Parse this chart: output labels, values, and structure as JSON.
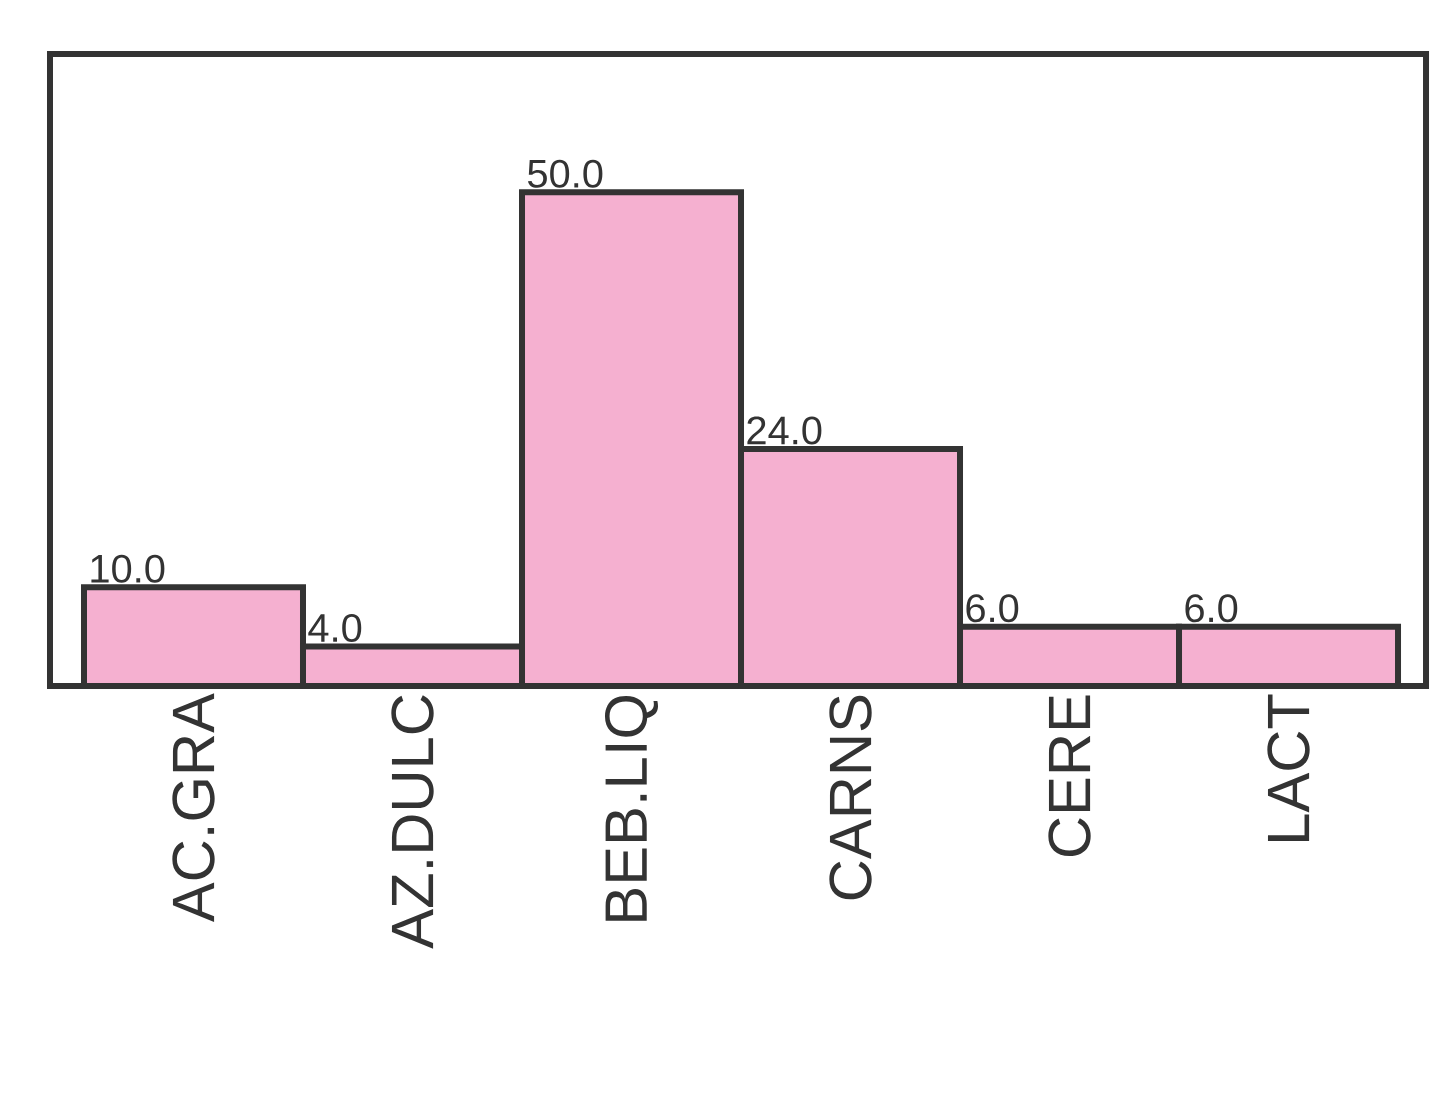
{
  "chart_data": {
    "type": "bar",
    "categories": [
      "AC.GRA",
      "AZ.DULC",
      "BEB.LIQ",
      "CARNS",
      "CERE",
      "LACT"
    ],
    "values": [
      10,
      4,
      50,
      24,
      6,
      6
    ],
    "value_labels": [
      "10.0",
      "4.0",
      "50.0",
      "24.0",
      "6.0",
      "6.0"
    ],
    "color": "#f5b0d0",
    "ylim": [
      0,
      64
    ],
    "tick_labels": "x"
  }
}
